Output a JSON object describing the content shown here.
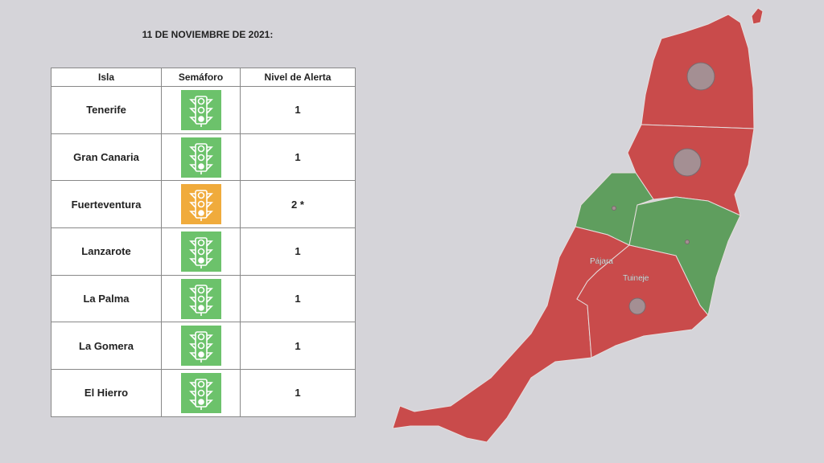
{
  "header": {
    "title": "11 DE NOVIEMBRE DE 2021:"
  },
  "table": {
    "columns": [
      "Isla",
      "Semáforo",
      "Nivel de Alerta"
    ],
    "rows": [
      {
        "isla": "Tenerife",
        "color": "#6cc26b",
        "nivel": "1"
      },
      {
        "isla": "Gran Canaria",
        "color": "#6cc26b",
        "nivel": "1"
      },
      {
        "isla": "Fuerteventura",
        "color": "#f0ab3c",
        "nivel": "2 *"
      },
      {
        "isla": "Lanzarote",
        "color": "#6cc26b",
        "nivel": "1"
      },
      {
        "isla": "La Palma",
        "color": "#6cc26b",
        "nivel": "1"
      },
      {
        "isla": "La Gomera",
        "color": "#6cc26b",
        "nivel": "1"
      },
      {
        "isla": "El Hierro",
        "color": "#6cc26b",
        "nivel": "1"
      }
    ]
  },
  "map": {
    "labels": [
      "Pájara",
      "Tuineje"
    ]
  }
}
